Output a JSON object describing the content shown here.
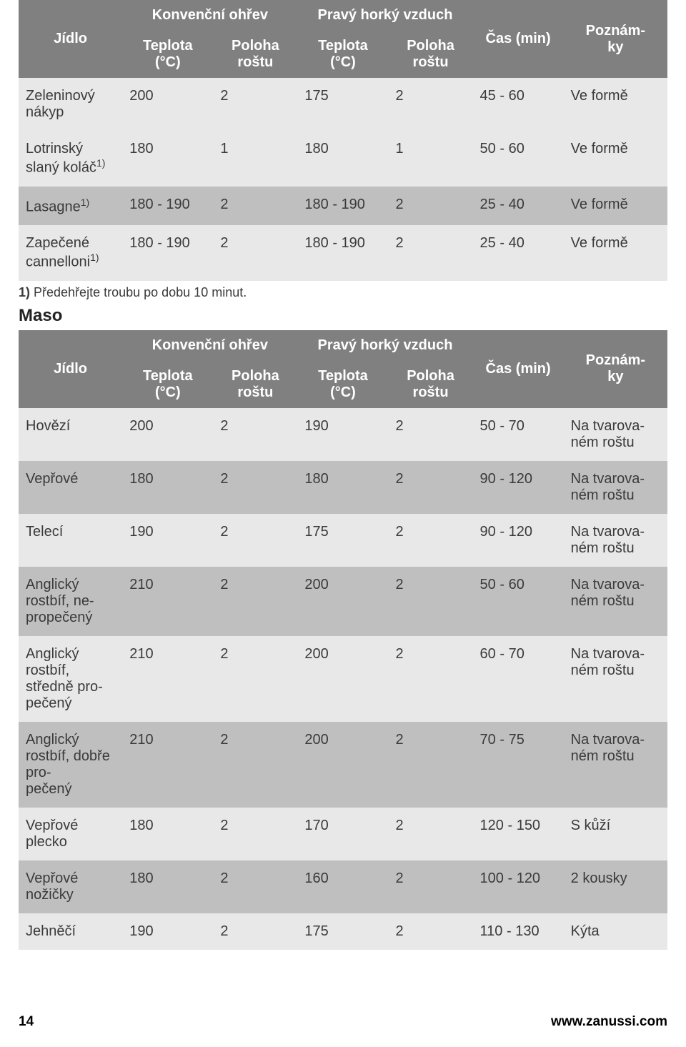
{
  "headers": {
    "food": "Jídlo",
    "conv": "Konvenční ohřev",
    "fan": "Pravý horký vzduch",
    "time": "Čas (min)",
    "notes": "Poznám‐\nky",
    "temp": "Teplota\n(°C)",
    "pos": "Poloha\nroštu"
  },
  "table1": {
    "rows": [
      {
        "food": "Zeleninový nákyp",
        "t1": "200",
        "p1": "2",
        "t2": "175",
        "p2": "2",
        "time": "45 - 60",
        "note": "Ve formě",
        "shade": "light"
      },
      {
        "food": "Lotrinský slaný koláč1)",
        "t1": "180",
        "p1": "1",
        "t2": "180",
        "p2": "1",
        "time": "50 - 60",
        "note": "Ve formě",
        "shade": "light"
      },
      {
        "food": "Lasagne1)",
        "t1": "180 - 190",
        "p1": "2",
        "t2": "180 - 190",
        "p2": "2",
        "time": "25 - 40",
        "note": "Ve formě",
        "shade": "dark"
      },
      {
        "food": "Zapečené cannelloni1)",
        "t1": "180 - 190",
        "p1": "2",
        "t2": "180 - 190",
        "p2": "2",
        "time": "25 - 40",
        "note": "Ve formě",
        "shade": "light"
      }
    ]
  },
  "footnote": {
    "num": "1)",
    "text": " Předehřejte troubu po dobu 10 minut."
  },
  "section2_title": "Maso",
  "table2": {
    "rows": [
      {
        "food": "Hovězí",
        "t1": "200",
        "p1": "2",
        "t2": "190",
        "p2": "2",
        "time": "50 - 70",
        "note": "Na tvarova‐\nném roštu",
        "shade": "light"
      },
      {
        "food": "Vepřové",
        "t1": "180",
        "p1": "2",
        "t2": "180",
        "p2": "2",
        "time": "90 - 120",
        "note": "Na tvarova‐\nném roštu",
        "shade": "dark"
      },
      {
        "food": "Telecí",
        "t1": "190",
        "p1": "2",
        "t2": "175",
        "p2": "2",
        "time": "90 - 120",
        "note": "Na tvarova‐\nném roštu",
        "shade": "light"
      },
      {
        "food": "Anglický rostbíf, ne‐\npropečený",
        "t1": "210",
        "p1": "2",
        "t2": "200",
        "p2": "2",
        "time": "50 - 60",
        "note": "Na tvarova‐\nném roštu",
        "shade": "dark"
      },
      {
        "food": "Anglický rostbíf, středně pro‐\npečený",
        "t1": "210",
        "p1": "2",
        "t2": "200",
        "p2": "2",
        "time": "60 - 70",
        "note": "Na tvarova‐\nném roštu",
        "shade": "light"
      },
      {
        "food": "Anglický rostbíf, dobře pro‐\npečený",
        "t1": "210",
        "p1": "2",
        "t2": "200",
        "p2": "2",
        "time": "70 - 75",
        "note": "Na tvarova‐\nném roštu",
        "shade": "dark"
      },
      {
        "food": "Vepřové plecko",
        "t1": "180",
        "p1": "2",
        "t2": "170",
        "p2": "2",
        "time": "120 - 150",
        "note": "S kůží",
        "shade": "light"
      },
      {
        "food": "Vepřové nožičky",
        "t1": "180",
        "p1": "2",
        "t2": "160",
        "p2": "2",
        "time": "100 - 120",
        "note": "2 kousky",
        "shade": "dark"
      },
      {
        "food": "Jehněčí",
        "t1": "190",
        "p1": "2",
        "t2": "175",
        "p2": "2",
        "time": "110 - 130",
        "note": "Kýta",
        "shade": "light"
      }
    ]
  },
  "footer": {
    "page": "14",
    "url": "www.zanussi.com"
  },
  "colors": {
    "header_bg": "#808080",
    "header_fg": "#ffffff",
    "row_light": "#e8e8e8",
    "row_dark": "#bfbfbf",
    "text": "#3a3a3a"
  }
}
